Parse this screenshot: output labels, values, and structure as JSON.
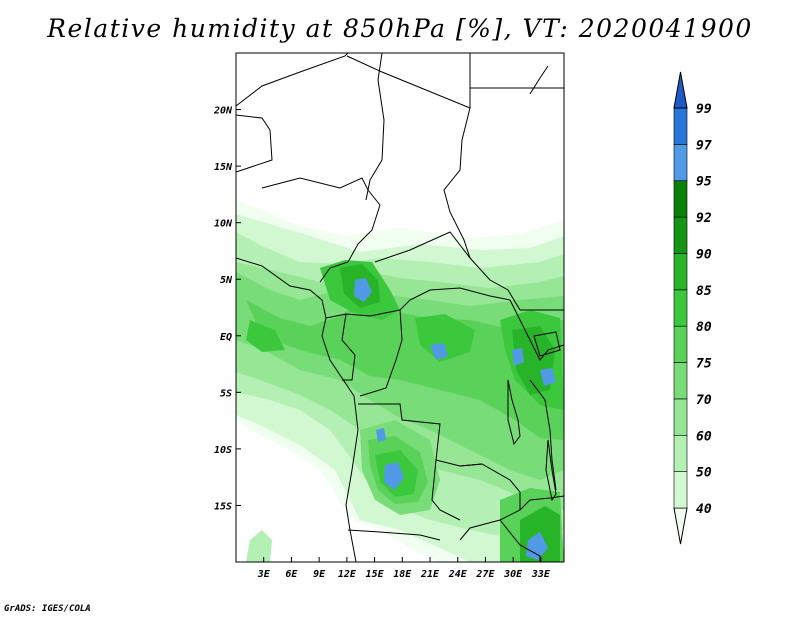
{
  "title": "Relative humidity at 850hPa [%], VT: 2020041900",
  "credit": "GrADS: IGES/COLA",
  "map": {
    "lon_range": [
      0,
      35.5
    ],
    "lat_range": [
      -20,
      25
    ],
    "lon_ticks": [
      {
        "value": 3,
        "label": "3E"
      },
      {
        "value": 6,
        "label": "6E"
      },
      {
        "value": 9,
        "label": "9E"
      },
      {
        "value": 12,
        "label": "12E"
      },
      {
        "value": 15,
        "label": "15E"
      },
      {
        "value": 18,
        "label": "18E"
      },
      {
        "value": 21,
        "label": "21E"
      },
      {
        "value": 24,
        "label": "24E"
      },
      {
        "value": 27,
        "label": "27E"
      },
      {
        "value": 30,
        "label": "30E"
      },
      {
        "value": 33,
        "label": "33E"
      }
    ],
    "lat_ticks": [
      {
        "value": 20,
        "label": "20N"
      },
      {
        "value": 15,
        "label": "15N"
      },
      {
        "value": 10,
        "label": "10N"
      },
      {
        "value": 5,
        "label": "5N"
      },
      {
        "value": 0,
        "label": "EQ"
      },
      {
        "value": -5,
        "label": "5S"
      },
      {
        "value": -10,
        "label": "10S"
      },
      {
        "value": -15,
        "label": "15S"
      }
    ]
  },
  "colorbar": {
    "levels": [
      "40",
      "50",
      "60",
      "70",
      "75",
      "80",
      "85",
      "90",
      "92",
      "95",
      "97",
      "99"
    ],
    "colors": [
      "#f0fff0",
      "#d2f8d2",
      "#b4f0b4",
      "#96e696",
      "#78dc78",
      "#5ad25a",
      "#3cc83c",
      "#28b428",
      "#149614",
      "#0a820a",
      "#509ae6",
      "#2a76d8",
      "#1e5ac8"
    ]
  },
  "icons": {
    "colorbar_lower_arrow": "triangle-down-icon",
    "colorbar_upper_arrow": "triangle-up-icon"
  }
}
